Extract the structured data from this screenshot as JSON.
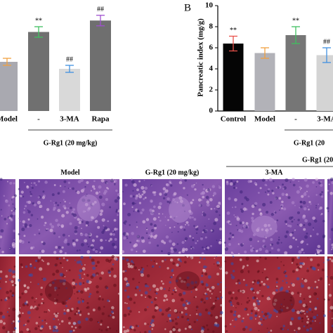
{
  "chart_data": [
    {
      "type": "bar",
      "categories": [
        "Model",
        "-",
        "3-MA",
        "Rapa"
      ],
      "values": [
        5.6,
        9.0,
        4.8,
        10.3
      ],
      "errors": [
        0.4,
        0.6,
        0.4,
        0.6
      ],
      "colors": [
        "#a9a9b0",
        "#707070",
        "#d9d9d9",
        "#6f6f6f"
      ],
      "annotations": [
        null,
        "**",
        "##",
        "##"
      ],
      "group_label": "G-Rg1 (20 mg/kg)",
      "ylim": [
        0,
        12
      ]
    },
    {
      "type": "bar",
      "panel_label": "B",
      "ylabel": "Pancreatic index (mg/g)",
      "categories": [
        "Control",
        "Model",
        "-",
        "3-MA"
      ],
      "values": [
        6.4,
        5.5,
        7.2,
        5.3
      ],
      "errors": [
        0.7,
        0.5,
        0.8,
        0.7
      ],
      "colors": [
        "#050505",
        "#b2b2b8",
        "#767676",
        "#d4d4d4"
      ],
      "annotations": [
        "**",
        null,
        "**",
        "##"
      ],
      "group_label": "G-Rg1 (20",
      "ylim": [
        0,
        10
      ],
      "yticks": [
        0,
        2,
        4,
        6,
        8,
        10
      ]
    }
  ],
  "image_panel": {
    "columns": [
      "Model",
      "G-Rg1 (20 mg/kg)",
      "3-MA"
    ],
    "group_label": "G-Rg1 (20"
  }
}
